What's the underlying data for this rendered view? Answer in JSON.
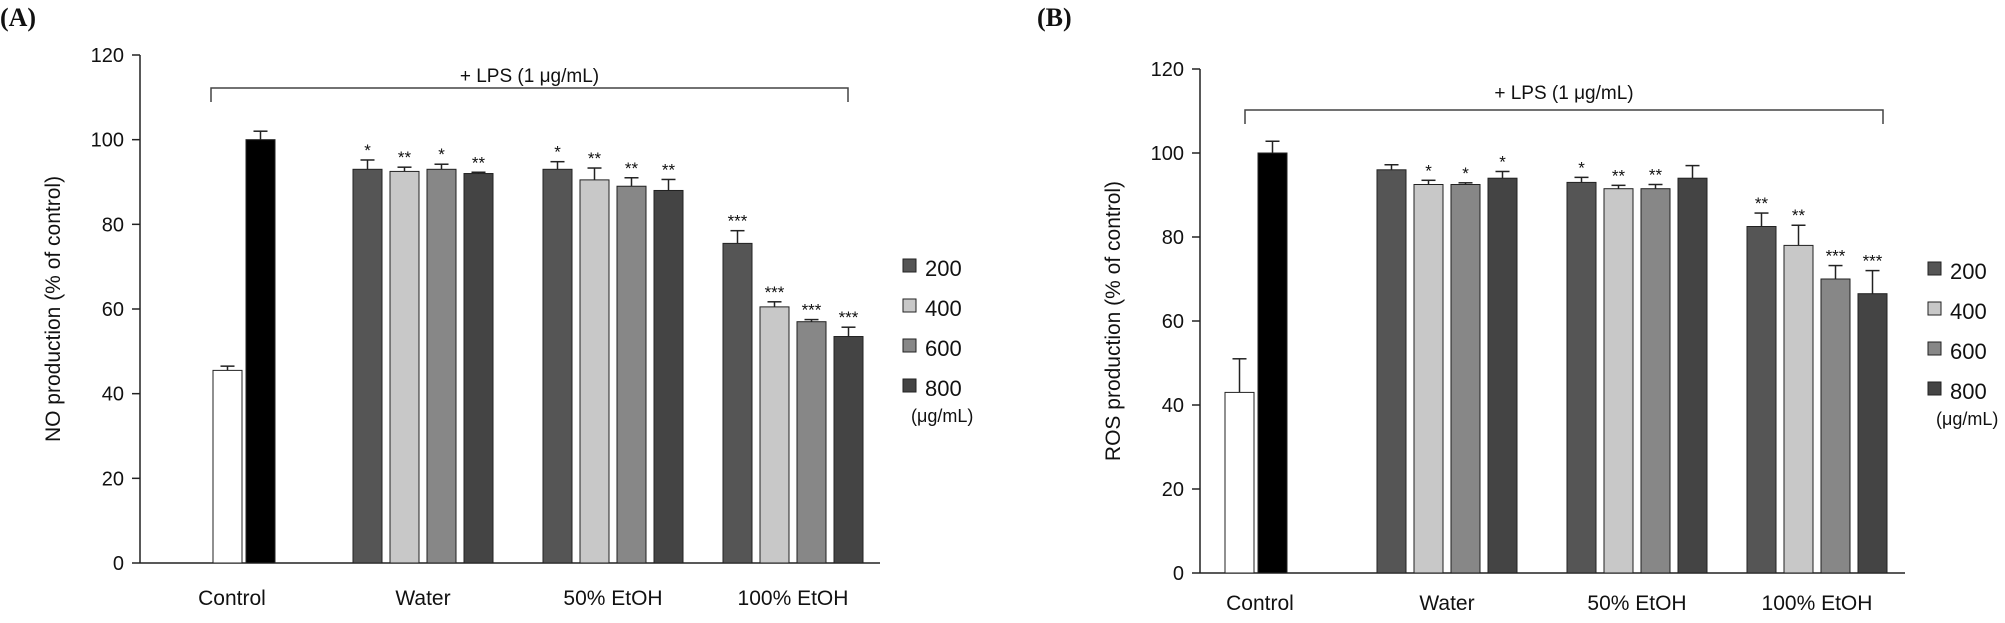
{
  "chart_data": [
    {
      "panel": "(A)",
      "type": "bar",
      "ylabel": "NO production (% of control)",
      "ylim": [
        0,
        120
      ],
      "yticks": [
        0,
        20,
        40,
        60,
        80,
        100,
        120
      ],
      "bracket_label": "+ LPS (1 μg/mL)",
      "legend_placement": "right",
      "legend": {
        "entries": [
          "200",
          "400",
          "600",
          "800"
        ],
        "unit": "(μg/mL)"
      },
      "control": [
        {
          "name": "control-no-lps",
          "value": 45.5,
          "error": 1.0,
          "color": "#ffffff"
        },
        {
          "name": "control-lps",
          "value": 100.0,
          "error": 2.0,
          "color": "#000000"
        }
      ],
      "control_label": "Control",
      "groups": [
        {
          "label": "Water",
          "values": [
            93,
            92.5,
            93,
            92
          ],
          "errors": [
            2.2,
            1.0,
            1.2,
            0.3
          ],
          "sig": [
            "*",
            "**",
            "*",
            "**"
          ]
        },
        {
          "label": "50%  EtOH",
          "values": [
            93,
            90.5,
            89,
            88
          ],
          "errors": [
            1.8,
            2.8,
            2.0,
            2.6
          ],
          "sig": [
            "*",
            "**",
            "**",
            "**"
          ]
        },
        {
          "label": "100%  EtOH",
          "values": [
            75.5,
            60.5,
            57,
            53.5
          ],
          "errors": [
            3.0,
            1.2,
            0.5,
            2.2
          ],
          "sig": [
            "***",
            "***",
            "***",
            "***"
          ]
        }
      ]
    },
    {
      "panel": "(B)",
      "type": "bar",
      "ylabel": "ROS production (% of control)",
      "ylim": [
        0,
        120
      ],
      "yticks": [
        0,
        20,
        40,
        60,
        80,
        100,
        120
      ],
      "bracket_label": "+ LPS (1 μg/mL)",
      "legend_placement": "right",
      "legend": {
        "entries": [
          "200",
          "400",
          "600",
          "800"
        ],
        "unit": "(μg/mL)"
      },
      "control": [
        {
          "name": "control-no-lps",
          "value": 43,
          "error": 8.0,
          "color": "#ffffff"
        },
        {
          "name": "control-lps",
          "value": 100,
          "error": 2.8,
          "color": "#000000"
        }
      ],
      "control_label": "Control",
      "groups": [
        {
          "label": "Water",
          "values": [
            96,
            92.5,
            92.5,
            94
          ],
          "errors": [
            1.2,
            1.0,
            0.4,
            1.6
          ],
          "sig": [
            "",
            "*",
            "*",
            "*"
          ]
        },
        {
          "label": "50%  EtOH",
          "values": [
            93,
            91.5,
            91.5,
            94
          ],
          "errors": [
            1.2,
            0.8,
            1.0,
            3.0
          ],
          "sig": [
            "*",
            "**",
            "**",
            ""
          ]
        },
        {
          "label": "100%  EtOH",
          "values": [
            82.5,
            78,
            70,
            66.5
          ],
          "errors": [
            3.2,
            4.8,
            3.2,
            5.5
          ],
          "sig": [
            "**",
            "**",
            "***",
            "***"
          ]
        }
      ]
    }
  ],
  "series_colors": [
    "#555555",
    "#c8c8c8",
    "#878787",
    "#444444"
  ]
}
